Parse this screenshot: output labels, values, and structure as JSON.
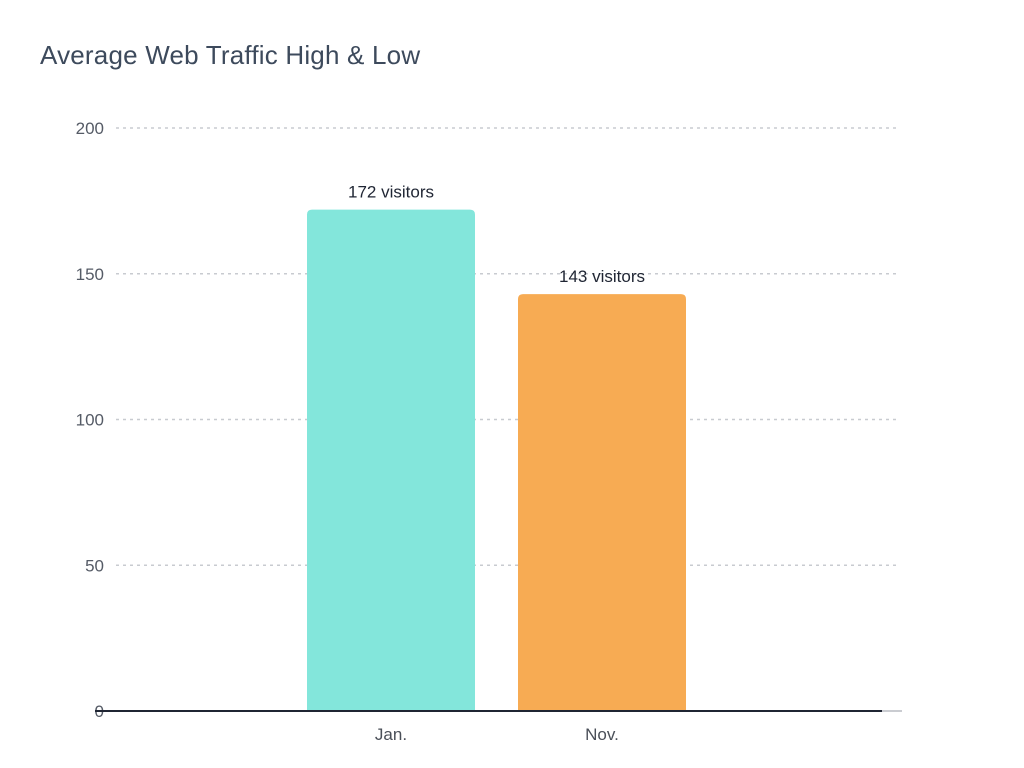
{
  "chart_data": {
    "type": "bar",
    "title": "Average Web Traffic High & Low",
    "categories": [
      "Jan.",
      "Nov."
    ],
    "values": [
      172,
      143
    ],
    "data_labels": [
      "172 visitors",
      "143 visitors"
    ],
    "bar_colors": [
      "#83e6db",
      "#f7ab53"
    ],
    "xlabel": "",
    "ylabel": "",
    "ylim": [
      0,
      200
    ],
    "yticks": [
      0,
      50,
      100,
      150,
      200
    ],
    "grid": true,
    "grid_style": "dashed",
    "legend": "none"
  }
}
